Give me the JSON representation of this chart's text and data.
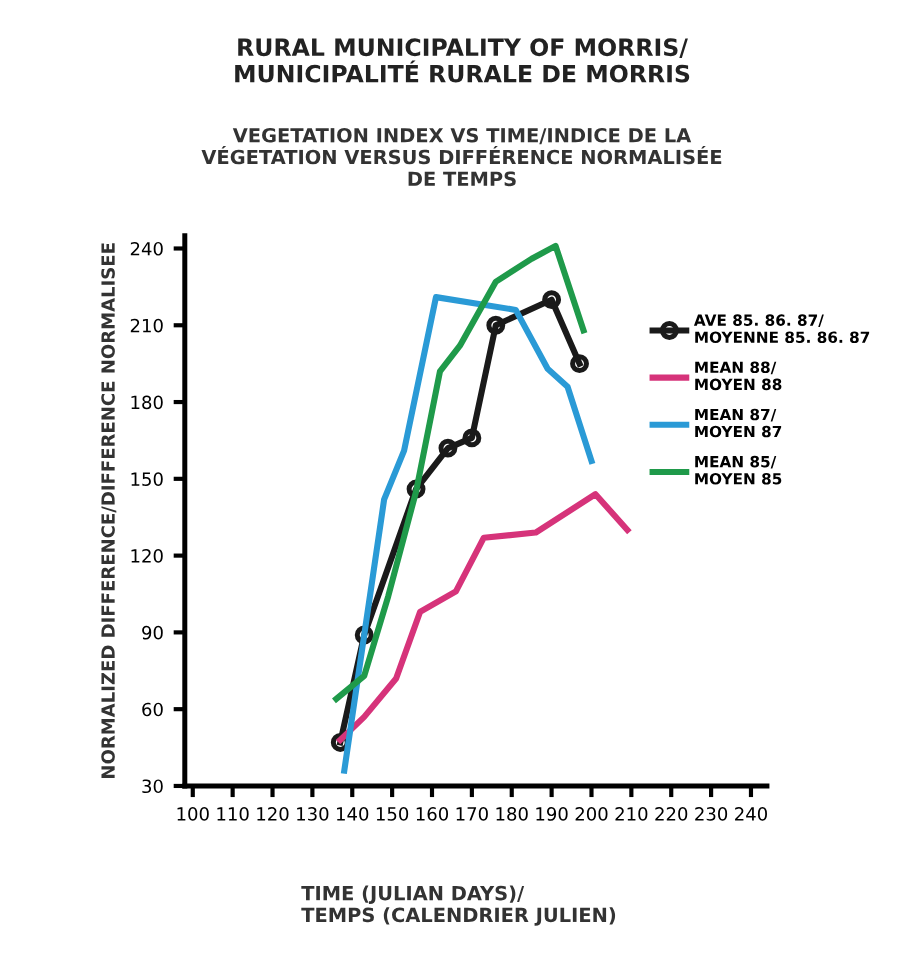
{
  "chart_data": {
    "type": "line",
    "title": "RURAL MUNICIPALITY OF MORRIS/\nMUNICIPALITÉ RURALE DE MORRIS",
    "subtitle": "VEGETATION INDEX VS TIME/INDICE DE LA\nVÉGETATION VERSUS DIFFÉRENCE NORMALISÉE\nDE TEMPS",
    "xlabel": "TIME (JULIAN DAYS)/\nTEMPS (CALENDRIER JULIEN)",
    "ylabel": "NORMALIZED DIFFERENCE/DIFFERENCE NORMALISEE",
    "xlim": [
      98,
      244
    ],
    "xticks": [
      100,
      110,
      120,
      130,
      140,
      150,
      160,
      170,
      180,
      190,
      200,
      210,
      220,
      230,
      240
    ],
    "ylim": [
      30,
      245
    ],
    "yticks": [
      30,
      60,
      90,
      120,
      150,
      180,
      210,
      240
    ],
    "grid": false,
    "legend": "right",
    "series": [
      {
        "name": "AVE 85. 86. 87/\nMOYENNE 85. 86. 87",
        "color": "#1a1a1a",
        "marker": "circle",
        "x": [
          137,
          143,
          156,
          164,
          170,
          176,
          190,
          197
        ],
        "values": [
          47,
          89,
          146,
          162,
          166,
          210,
          220,
          195
        ]
      },
      {
        "name": "MEAN 88/\nMOYEN 88",
        "color": "#d6337a",
        "x": [
          137,
          143,
          151,
          157,
          166,
          173,
          186,
          201,
          209
        ],
        "values": [
          48,
          57,
          72,
          98,
          106,
          127,
          129,
          144,
          130
        ]
      },
      {
        "name": "MEAN 87/\nMOYEN 87",
        "color": "#2a9ad6",
        "x": [
          138,
          148,
          153,
          161,
          181,
          189,
          194,
          200
        ],
        "values": [
          36,
          142,
          161,
          221,
          216,
          193,
          186,
          157
        ]
      },
      {
        "name": "MEAN 85/\nMOYEN 85",
        "color": "#1f9a4a",
        "x": [
          136,
          143,
          149,
          156,
          162,
          167,
          176,
          185,
          191,
          198
        ],
        "values": [
          64,
          73,
          104,
          145,
          192,
          202,
          227,
          236,
          241,
          208
        ]
      }
    ]
  }
}
